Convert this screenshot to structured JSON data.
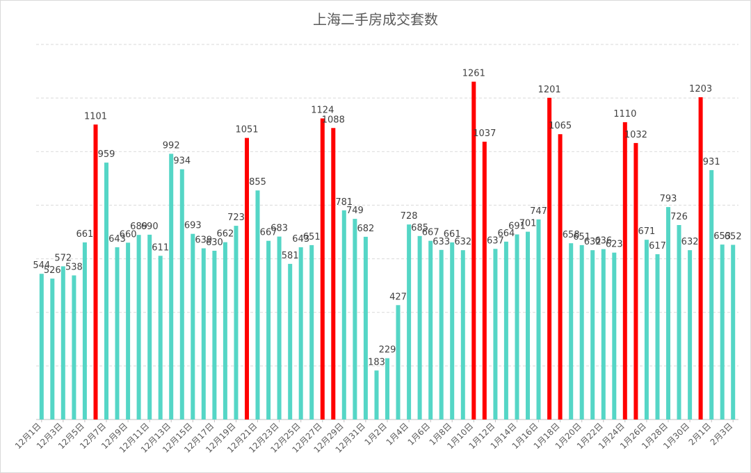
{
  "title": "上海二手房成交套数",
  "colors": {
    "normal": "#55d6c6",
    "highlight": "#ff0000",
    "label": "#404040",
    "axis_text": "#595959",
    "grid": "#d9d9d9"
  },
  "chart_data": {
    "type": "bar",
    "title": "上海二手房成交套数",
    "ylim": [
      0,
      1400
    ],
    "grid": true,
    "categories": [
      "12月1日",
      "12月2日",
      "12月3日",
      "12月4日",
      "12月5日",
      "12月6日",
      "12月7日",
      "12月8日",
      "12月9日",
      "12月10日",
      "12月11日",
      "12月12日",
      "12月13日",
      "12月14日",
      "12月15日",
      "12月16日",
      "12月17日",
      "12月18日",
      "12月19日",
      "12月20日",
      "12月21日",
      "12月22日",
      "12月23日",
      "12月24日",
      "12月25日",
      "12月26日",
      "12月27日",
      "12月28日",
      "12月29日",
      "12月30日",
      "12月31日",
      "1月1日",
      "1月2日",
      "1月3日",
      "1月4日",
      "1月5日",
      "1月6日",
      "1月7日",
      "1月8日",
      "1月9日",
      "1月10日",
      "1月11日",
      "1月12日",
      "1月13日",
      "1月14日",
      "1月15日",
      "1月16日",
      "1月17日",
      "1月18日",
      "1月19日",
      "1月20日",
      "1月21日",
      "1月22日",
      "1月23日",
      "1月24日",
      "1月25日",
      "1月26日",
      "1月27日",
      "1月28日",
      "1月29日",
      "1月30日",
      "1月31日",
      "2月1日",
      "2月2日",
      "2月3日"
    ],
    "values": [
      544,
      526,
      572,
      538,
      661,
      1101,
      959,
      643,
      660,
      689,
      690,
      611,
      992,
      934,
      693,
      639,
      630,
      662,
      723,
      1051,
      855,
      667,
      683,
      581,
      643,
      651,
      1124,
      1088,
      781,
      749,
      682,
      183,
      229,
      427,
      728,
      685,
      667,
      633,
      661,
      632,
      1261,
      1037,
      637,
      664,
      691,
      701,
      747,
      1201,
      1065,
      658,
      651,
      632,
      636,
      623,
      1110,
      1032,
      671,
      617,
      793,
      726,
      632,
      1203,
      931,
      653,
      652
    ],
    "highlight": [
      false,
      false,
      false,
      false,
      false,
      true,
      false,
      false,
      false,
      false,
      false,
      false,
      false,
      false,
      false,
      false,
      false,
      false,
      false,
      true,
      false,
      false,
      false,
      false,
      false,
      false,
      true,
      true,
      false,
      false,
      false,
      false,
      false,
      false,
      false,
      false,
      false,
      false,
      false,
      false,
      true,
      true,
      false,
      false,
      false,
      false,
      false,
      true,
      true,
      false,
      false,
      false,
      false,
      false,
      true,
      true,
      false,
      false,
      false,
      false,
      false,
      true,
      false,
      false,
      false
    ],
    "xtick_labels": [
      "12月1日",
      "12月3日",
      "12月5日",
      "12月7日",
      "12月9日",
      "12月11日",
      "12月13日",
      "12月15日",
      "12月17日",
      "12月19日",
      "12月21日",
      "12月23日",
      "12月25日",
      "12月27日",
      "12月29日",
      "12月31日",
      "1月2日",
      "1月4日",
      "1月6日",
      "1月8日",
      "1月10日",
      "1月12日",
      "1月14日",
      "1月16日",
      "1月18日",
      "1月20日",
      "1月22日",
      "1月24日",
      "1月26日",
      "1月28日",
      "1月30日",
      "2月1日",
      "2月3日"
    ]
  }
}
